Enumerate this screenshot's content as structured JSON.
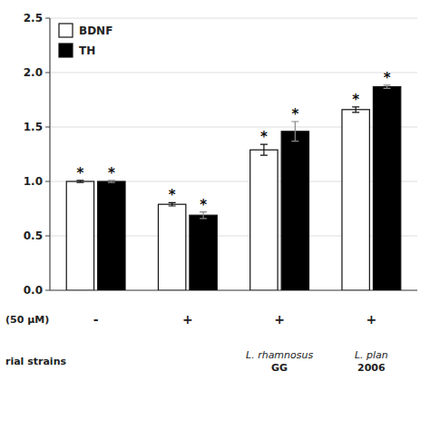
{
  "chart_data": {
    "type": "bar",
    "categories": [
      "-",
      "+",
      "+",
      "+"
    ],
    "series": [
      {
        "name": "BDNF",
        "color": "white",
        "values": [
          1.0,
          0.79,
          1.29,
          1.66
        ],
        "errors": [
          0.01,
          0.015,
          0.05,
          0.025
        ]
      },
      {
        "name": "TH",
        "color": "black",
        "values": [
          1.0,
          0.69,
          1.46,
          1.87
        ],
        "errors": [
          0.01,
          0.03,
          0.09,
          0.015
        ]
      }
    ],
    "ylim": [
      0.0,
      2.5
    ],
    "yticks": [
      {
        "value": 0.0,
        "label": "0.0"
      },
      0.5,
      {
        "value": 1.0,
        "label": "1.0"
      },
      1.5,
      {
        "value": 2.0,
        "label": "2.0"
      },
      2.5
    ],
    "grid": true,
    "legend": "upper left",
    "annotations": [
      "*",
      "(50 µM)",
      "rial strains",
      "L. rhamnosus\nGG",
      "L. plan\n2006"
    ]
  }
}
